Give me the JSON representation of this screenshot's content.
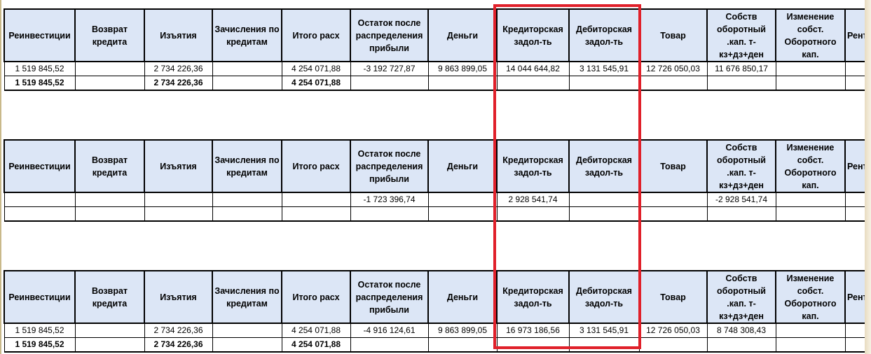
{
  "headers": [
    "Реинвестиции",
    "Возврат кредита",
    "Изъятия",
    "Зачисления по кредитам",
    "Итого расх",
    "Остаток после распределения прибыли",
    "Деньги",
    "Кредиторская задол-ть",
    "Дебиторская задол-ть",
    "Товар",
    "Собств оборотный .кап. т-кз+дз+ден",
    "Изменение собст. Оборотного кап.",
    "Рент"
  ],
  "tables": [
    {
      "rows": [
        [
          "1 519 845,52",
          "",
          "2 734 226,36",
          "",
          "4 254 071,88",
          "-3 192 727,87",
          "9 863 899,05",
          "14 044 644,82",
          "3 131 545,91",
          "12 726 050,03",
          "11 676 850,17",
          "",
          ""
        ],
        [
          "1 519 845,52",
          "",
          "2 734 226,36",
          "",
          "4 254 071,88",
          "",
          "",
          "",
          "",
          "",
          "",
          "",
          ""
        ]
      ]
    },
    {
      "rows": [
        [
          "",
          "",
          "",
          "",
          "",
          "-1 723 396,74",
          "",
          "2 928 541,74",
          "",
          "",
          "-2 928 541,74",
          "",
          ""
        ],
        [
          "",
          "",
          "",
          "",
          "",
          "",
          "",
          "",
          "",
          "",
          "",
          "",
          ""
        ]
      ]
    },
    {
      "rows": [
        [
          "1 519 845,52",
          "",
          "2 734 226,36",
          "",
          "4 254 071,88",
          "-4 916 124,61",
          "9 863 899,05",
          "16 973 186,56",
          "3 131 545,91",
          "12 726 050,03",
          "8 748 308,43",
          "",
          ""
        ],
        [
          "1 519 845,52",
          "",
          "2 734 226,36",
          "",
          "4 254 071,88",
          "",
          "",
          "",
          "",
          "",
          "",
          "",
          ""
        ]
      ]
    }
  ],
  "highlight_color": "#e0202a",
  "header_fill": "#dce6f6"
}
